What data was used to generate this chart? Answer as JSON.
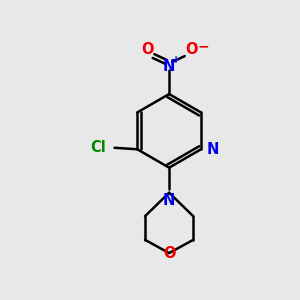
{
  "bg_color": "#e8e8e8",
  "bond_color": "#000000",
  "bond_width": 1.8,
  "N_color": "#0000ee",
  "O_color": "#ee0000",
  "Cl_color": "#008800",
  "font_size": 10.5,
  "fig_w": 3.0,
  "fig_h": 3.0,
  "dpi": 100,
  "xlim": [
    0,
    10
  ],
  "ylim": [
    0,
    10
  ]
}
